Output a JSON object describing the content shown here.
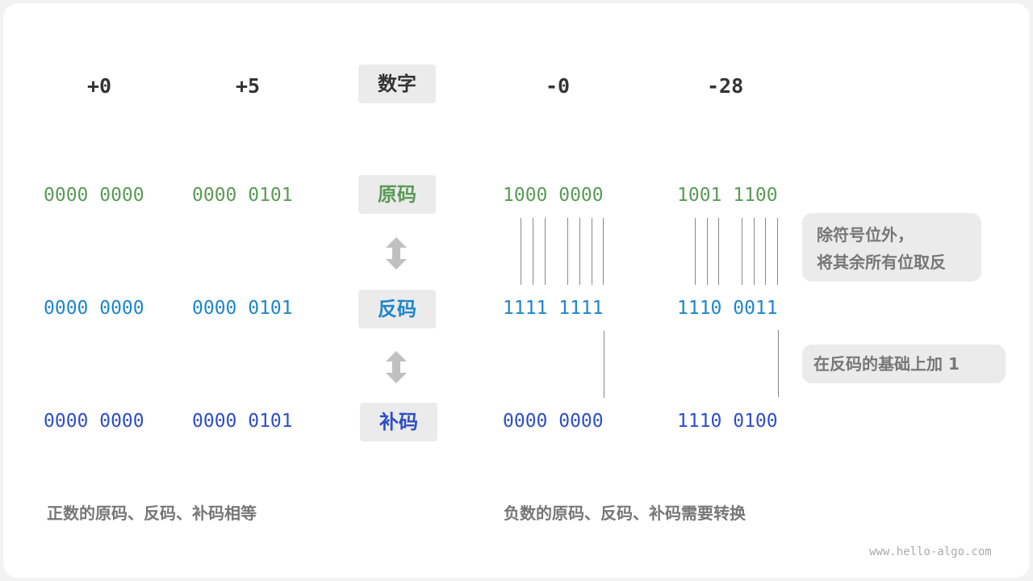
{
  "columns": [
    {
      "number": "+0",
      "original": "0000 0000",
      "ones": "0000 0000",
      "twos": "0000 0000"
    },
    {
      "number": "+5",
      "original": "0000 0101",
      "ones": "0000 0101",
      "twos": "0000 0101"
    },
    {
      "number": "-0",
      "original": "1000 0000",
      "ones": "1111 1111",
      "twos": "0000 0000"
    },
    {
      "number": "-28",
      "original": "1001 1100",
      "ones": "1110 0011",
      "twos": "1110 0100"
    }
  ],
  "labels": {
    "number": "数字",
    "original": "原码",
    "ones": "反码",
    "twos": "补码"
  },
  "notes": {
    "invert": [
      "除符号位外，",
      "将其余所有位取反"
    ],
    "add_one": "在反码的基础上加 1"
  },
  "captions": {
    "positive": "正数的原码、反码、补码相等",
    "negative": "负数的原码、反码、补码需要转换"
  },
  "watermark": "www.hello-algo.com",
  "colors": {
    "original": "#5a9a58",
    "ones": "#1f86cc",
    "twos": "#2f4fc6",
    "label_bg": "#ebebeb"
  }
}
